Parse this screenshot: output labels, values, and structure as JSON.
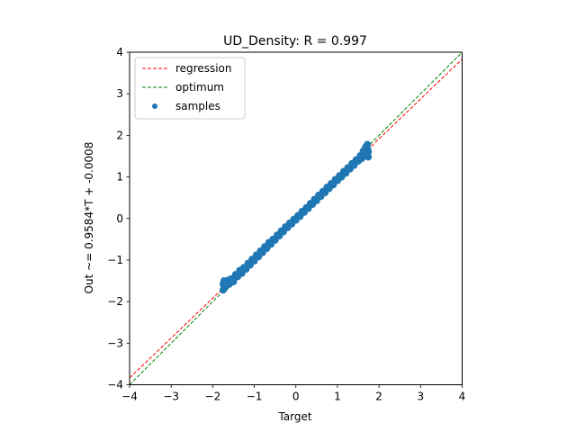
{
  "chart_data": {
    "type": "scatter",
    "title": "UD_Density: R = 0.997",
    "xlabel": "Target",
    "ylabel": "Out ~= 0.9584*T + -0.0008",
    "xlim": [
      -4,
      4
    ],
    "ylim": [
      -4,
      4
    ],
    "xticks": [
      -4,
      -3,
      -2,
      -1,
      0,
      1,
      2,
      3,
      4
    ],
    "yticks": [
      -4,
      -3,
      -2,
      -1,
      0,
      1,
      2,
      3,
      4
    ],
    "xtick_labels": [
      "−4",
      "−3",
      "−2",
      "−1",
      "0",
      "1",
      "2",
      "3",
      "4"
    ],
    "ytick_labels": [
      "−4",
      "−3",
      "−2",
      "−1",
      "0",
      "1",
      "2",
      "3",
      "4"
    ],
    "grid": false,
    "legend_position": "upper-left",
    "regression": {
      "slope": 0.9584,
      "intercept": -0.0008
    },
    "series": [
      {
        "name": "regression",
        "kind": "line",
        "style": "dashed",
        "color": "#ff0000"
      },
      {
        "name": "optimum",
        "kind": "line",
        "style": "dashed",
        "color": "#008000",
        "slope": 1,
        "intercept": 0
      },
      {
        "name": "samples",
        "kind": "scatter",
        "color": "#1f77b4",
        "points": [
          [
            -1.75,
            -1.72
          ],
          [
            -1.75,
            -1.58
          ],
          [
            -1.73,
            -1.5
          ],
          [
            -1.7,
            -1.66
          ],
          [
            -1.68,
            -1.55
          ],
          [
            -1.65,
            -1.6
          ],
          [
            -1.62,
            -1.48
          ],
          [
            -1.6,
            -1.58
          ],
          [
            -1.55,
            -1.45
          ],
          [
            -1.5,
            -1.52
          ],
          [
            -1.45,
            -1.35
          ],
          [
            -1.4,
            -1.4
          ],
          [
            -1.35,
            -1.25
          ],
          [
            -1.3,
            -1.32
          ],
          [
            -1.25,
            -1.18
          ],
          [
            -1.2,
            -1.22
          ],
          [
            -1.15,
            -1.08
          ],
          [
            -1.1,
            -1.12
          ],
          [
            -1.05,
            -0.98
          ],
          [
            -1.0,
            -1.02
          ],
          [
            -0.95,
            -0.88
          ],
          [
            -0.9,
            -0.92
          ],
          [
            -0.85,
            -0.78
          ],
          [
            -0.8,
            -0.82
          ],
          [
            -0.75,
            -0.68
          ],
          [
            -0.7,
            -0.72
          ],
          [
            -0.65,
            -0.58
          ],
          [
            -0.6,
            -0.62
          ],
          [
            -0.55,
            -0.5
          ],
          [
            -0.5,
            -0.52
          ],
          [
            -0.45,
            -0.4
          ],
          [
            -0.4,
            -0.42
          ],
          [
            -0.35,
            -0.3
          ],
          [
            -0.3,
            -0.32
          ],
          [
            -0.25,
            -0.2
          ],
          [
            -0.2,
            -0.22
          ],
          [
            -0.15,
            -0.11
          ],
          [
            -0.1,
            -0.13
          ],
          [
            -0.05,
            -0.02
          ],
          [
            0.0,
            -0.04
          ],
          [
            0.05,
            0.07
          ],
          [
            0.1,
            0.05
          ],
          [
            0.15,
            0.17
          ],
          [
            0.2,
            0.15
          ],
          [
            0.25,
            0.26
          ],
          [
            0.3,
            0.24
          ],
          [
            0.35,
            0.36
          ],
          [
            0.4,
            0.34
          ],
          [
            0.45,
            0.46
          ],
          [
            0.5,
            0.43
          ],
          [
            0.55,
            0.56
          ],
          [
            0.6,
            0.53
          ],
          [
            0.65,
            0.65
          ],
          [
            0.7,
            0.62
          ],
          [
            0.75,
            0.75
          ],
          [
            0.8,
            0.72
          ],
          [
            0.85,
            0.84
          ],
          [
            0.9,
            0.81
          ],
          [
            0.95,
            0.94
          ],
          [
            1.0,
            0.91
          ],
          [
            1.05,
            1.03
          ],
          [
            1.1,
            1.0
          ],
          [
            1.15,
            1.13
          ],
          [
            1.2,
            1.09
          ],
          [
            1.25,
            1.22
          ],
          [
            1.3,
            1.19
          ],
          [
            1.35,
            1.32
          ],
          [
            1.4,
            1.28
          ],
          [
            1.45,
            1.41
          ],
          [
            1.5,
            1.38
          ],
          [
            1.55,
            1.51
          ],
          [
            1.58,
            1.44
          ],
          [
            1.62,
            1.62
          ],
          [
            1.65,
            1.5
          ],
          [
            1.68,
            1.72
          ],
          [
            1.7,
            1.56
          ],
          [
            1.72,
            1.78
          ],
          [
            1.74,
            1.6
          ],
          [
            1.74,
            1.48
          ],
          [
            1.73,
            1.66
          ]
        ]
      }
    ]
  }
}
